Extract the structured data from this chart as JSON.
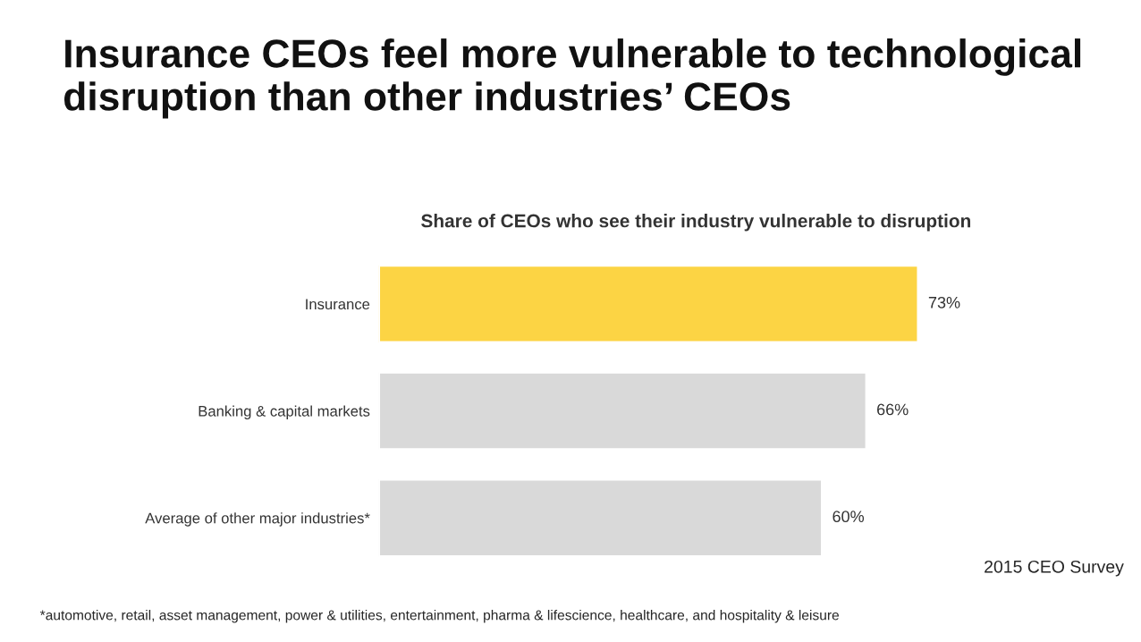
{
  "chart_data": {
    "type": "bar",
    "orientation": "horizontal",
    "title": "Insurance CEOs feel more vulnerable to technological disruption than other industries’ CEOs",
    "subtitle": "Share of CEOs who see their industry vulnerable to disruption",
    "categories": [
      "Insurance",
      "Banking & capital markets",
      "Average of other major industries*"
    ],
    "values": [
      73,
      66,
      60
    ],
    "colors": [
      "#fcd444",
      "#d9d9d9",
      "#d9d9d9"
    ],
    "value_labels": [
      "73%",
      "66%",
      "60%"
    ],
    "annotations": [
      "2015 CEO Survey",
      "*automotive, retail, asset management, power & utilities, entertainment, pharma & lifescience, healthcare, and hospitality & leisure"
    ],
    "grid": false,
    "legend": false
  }
}
